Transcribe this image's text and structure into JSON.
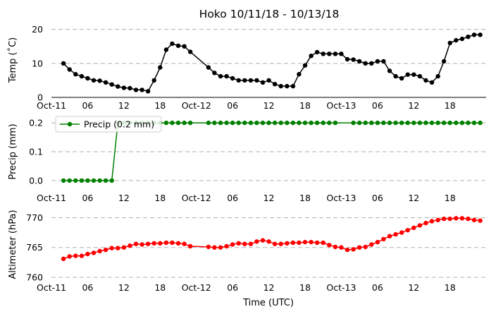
{
  "figure": {
    "title": "Hoko 10/11/18 - 10/13/18",
    "xlabel": "Time (UTC)"
  },
  "chart_data": [
    {
      "type": "line",
      "ylabel": "Temp (˚C)",
      "ylim": [
        0,
        22
      ],
      "yticks": [
        0,
        10,
        20
      ],
      "grid": true,
      "color": "#000000",
      "x": [
        "10-11 02:00",
        "10-11 03:00",
        "10-11 04:00",
        "10-11 05:00",
        "10-11 06:00",
        "10-11 07:00",
        "10-11 08:00",
        "10-11 09:00",
        "10-11 10:00",
        "10-11 11:00",
        "10-11 12:00",
        "10-11 13:00",
        "10-11 14:00",
        "10-11 15:00",
        "10-11 16:00",
        "10-11 17:00",
        "10-11 18:00",
        "10-11 19:00",
        "10-11 20:00",
        "10-11 21:00",
        "10-11 22:00",
        "10-11 23:00",
        "10-12 02:00",
        "10-12 03:00",
        "10-12 04:00",
        "10-12 05:00",
        "10-12 06:00",
        "10-12 07:00",
        "10-12 08:00",
        "10-12 09:00",
        "10-12 10:00",
        "10-12 11:00",
        "10-12 12:00",
        "10-12 13:00",
        "10-12 14:00",
        "10-12 15:00",
        "10-12 16:00",
        "10-12 17:00",
        "10-12 18:00",
        "10-12 19:00",
        "10-12 20:00",
        "10-12 21:00",
        "10-12 22:00",
        "10-12 23:00",
        "10-13 00:00",
        "10-13 01:00",
        "10-13 02:00",
        "10-13 03:00",
        "10-13 04:00",
        "10-13 05:00",
        "10-13 06:00",
        "10-13 07:00",
        "10-13 08:00",
        "10-13 09:00",
        "10-13 10:00",
        "10-13 11:00",
        "10-13 12:00",
        "10-13 13:00",
        "10-13 14:00",
        "10-13 15:00",
        "10-13 16:00",
        "10-13 17:00",
        "10-13 18:00",
        "10-13 19:00",
        "10-13 20:00",
        "10-13 21:00",
        "10-13 22:00",
        "10-13 23:00"
      ],
      "values": [
        10,
        8.2,
        6.8,
        6.2,
        5.6,
        5.0,
        4.9,
        4.4,
        3.8,
        3.2,
        2.8,
        2.7,
        2.2,
        2.2,
        1.8,
        5.0,
        8.8,
        14.0,
        15.8,
        15.2,
        15.0,
        13.4,
        8.8,
        7.2,
        6.2,
        6.2,
        5.6,
        5.0,
        5.0,
        5.0,
        5.0,
        4.4,
        5.0,
        3.9,
        3.3,
        3.3,
        3.3,
        6.8,
        9.4,
        12.2,
        13.3,
        12.8,
        12.8,
        12.8,
        12.8,
        11.2,
        11.1,
        10.6,
        10.0,
        10.0,
        10.6,
        10.6,
        7.8,
        6.2,
        5.6,
        6.7,
        6.7,
        6.2,
        5.0,
        4.4,
        6.2,
        10.6,
        16.0,
        16.8,
        17.2,
        17.8,
        18.4,
        18.4
      ]
    },
    {
      "type": "line",
      "ylabel": "Precip (mm)",
      "ylim": [
        -0.01,
        0.21
      ],
      "yticks": [
        0.0,
        0.1,
        0.2
      ],
      "grid": true,
      "color": "#008000",
      "legend": "Precip (0.2 mm)",
      "legend_position": "upper left",
      "x": [
        "10-11 02:00",
        "10-11 03:00",
        "10-11 04:00",
        "10-11 05:00",
        "10-11 06:00",
        "10-11 07:00",
        "10-11 08:00",
        "10-11 09:00",
        "10-11 10:00",
        "10-11 11:00",
        "10-11 12:00",
        "10-11 13:00",
        "10-11 14:00",
        "10-11 15:00",
        "10-11 16:00",
        "10-11 17:00",
        "10-11 18:00",
        "10-11 19:00",
        "10-11 20:00",
        "10-11 21:00",
        "10-11 22:00",
        "10-11 23:00",
        "10-12 02:00",
        "10-12 03:00",
        "10-12 04:00",
        "10-12 05:00",
        "10-12 06:00",
        "10-12 07:00",
        "10-12 08:00",
        "10-12 09:00",
        "10-12 10:00",
        "10-12 11:00",
        "10-12 12:00",
        "10-12 13:00",
        "10-12 14:00",
        "10-12 15:00",
        "10-12 16:00",
        "10-12 17:00",
        "10-12 18:00",
        "10-12 19:00",
        "10-12 20:00",
        "10-12 21:00",
        "10-12 22:00",
        "10-12 23:00",
        "10-13 02:00",
        "10-13 03:00",
        "10-13 04:00",
        "10-13 05:00",
        "10-13 06:00",
        "10-13 07:00",
        "10-13 08:00",
        "10-13 09:00",
        "10-13 10:00",
        "10-13 11:00",
        "10-13 12:00",
        "10-13 13:00",
        "10-13 14:00",
        "10-13 15:00",
        "10-13 16:00",
        "10-13 17:00",
        "10-13 18:00",
        "10-13 19:00",
        "10-13 20:00",
        "10-13 21:00",
        "10-13 22:00",
        "10-13 23:00"
      ],
      "values": [
        0,
        0,
        0,
        0,
        0,
        0,
        0,
        0,
        0,
        0.2,
        0.2,
        0.2,
        0.2,
        0.2,
        0.2,
        0.2,
        0.2,
        0.2,
        0.2,
        0.2,
        0.2,
        0.2,
        0.2,
        0.2,
        0.2,
        0.2,
        0.2,
        0.2,
        0.2,
        0.2,
        0.2,
        0.2,
        0.2,
        0.2,
        0.2,
        0.2,
        0.2,
        0.2,
        0.2,
        0.2,
        0.2,
        0.2,
        0.2,
        0.2,
        0.2,
        0.2,
        0.2,
        0.2,
        0.2,
        0.2,
        0.2,
        0.2,
        0.2,
        0.2,
        0.2,
        0.2,
        0.2,
        0.2,
        0.2,
        0.2,
        0.2,
        0.2,
        0.2,
        0.2,
        0.2,
        0.2
      ]
    },
    {
      "type": "line",
      "ylabel": "Altimeter (hPa)",
      "ylim": [
        760,
        771
      ],
      "yticks": [
        760,
        765,
        770
      ],
      "grid": true,
      "color": "#ff0000",
      "x": [
        "10-11 02:00",
        "10-11 03:00",
        "10-11 04:00",
        "10-11 05:00",
        "10-11 06:00",
        "10-11 07:00",
        "10-11 08:00",
        "10-11 09:00",
        "10-11 10:00",
        "10-11 11:00",
        "10-11 12:00",
        "10-11 13:00",
        "10-11 14:00",
        "10-11 15:00",
        "10-11 16:00",
        "10-11 17:00",
        "10-11 18:00",
        "10-11 19:00",
        "10-11 20:00",
        "10-11 21:00",
        "10-11 22:00",
        "10-11 23:00",
        "10-12 02:00",
        "10-12 03:00",
        "10-12 04:00",
        "10-12 05:00",
        "10-12 06:00",
        "10-12 07:00",
        "10-12 08:00",
        "10-12 09:00",
        "10-12 10:00",
        "10-12 11:00",
        "10-12 12:00",
        "10-12 13:00",
        "10-12 14:00",
        "10-12 15:00",
        "10-12 16:00",
        "10-12 17:00",
        "10-12 18:00",
        "10-12 19:00",
        "10-12 20:00",
        "10-12 21:00",
        "10-12 22:00",
        "10-12 23:00",
        "10-13 00:00",
        "10-13 01:00",
        "10-13 02:00",
        "10-13 03:00",
        "10-13 04:00",
        "10-13 05:00",
        "10-13 06:00",
        "10-13 07:00",
        "10-13 08:00",
        "10-13 09:00",
        "10-13 10:00",
        "10-13 11:00",
        "10-13 12:00",
        "10-13 13:00",
        "10-13 14:00",
        "10-13 15:00",
        "10-13 16:00",
        "10-13 17:00",
        "10-13 18:00",
        "10-13 19:00",
        "10-13 20:00",
        "10-13 21:00",
        "10-13 22:00",
        "10-13 23:00"
      ],
      "values": [
        763.1,
        763.5,
        763.6,
        763.6,
        763.9,
        764.1,
        764.4,
        764.6,
        764.9,
        764.9,
        765.0,
        765.3,
        765.6,
        765.5,
        765.6,
        765.7,
        765.7,
        765.8,
        765.8,
        765.7,
        765.6,
        765.2,
        765.1,
        765.0,
        765.0,
        765.2,
        765.5,
        765.7,
        765.6,
        765.6,
        766.0,
        766.2,
        766.0,
        765.6,
        765.6,
        765.7,
        765.8,
        765.8,
        765.9,
        765.9,
        765.8,
        765.8,
        765.4,
        765.1,
        765.0,
        764.6,
        764.7,
        765.0,
        765.1,
        765.5,
        765.9,
        766.4,
        766.9,
        767.2,
        767.5,
        767.9,
        768.3,
        768.7,
        769.1,
        769.4,
        769.6,
        769.8,
        769.8,
        769.9,
        769.9,
        769.8,
        769.6,
        769.5
      ]
    }
  ],
  "x_ticks": [
    "Oct-11",
    "06",
    "12",
    "18",
    "Oct-12",
    "06",
    "12",
    "18",
    "Oct-13",
    "06",
    "12",
    "18"
  ],
  "x_tick_times": [
    "10-11 00:00",
    "10-11 06:00",
    "10-11 12:00",
    "10-11 18:00",
    "10-12 00:00",
    "10-12 06:00",
    "10-12 12:00",
    "10-12 18:00",
    "10-13 00:00",
    "10-13 06:00",
    "10-13 12:00",
    "10-13 18:00"
  ],
  "x_range": [
    "10-11 00:00",
    "10-13 23:59"
  ]
}
